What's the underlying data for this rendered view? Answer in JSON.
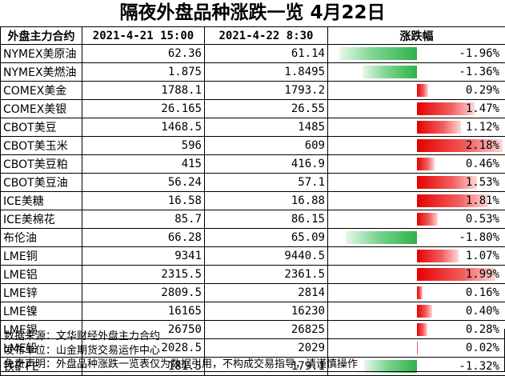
{
  "title": "隔夜外盘品种涨跌一览 4月22日",
  "headers": {
    "name": "外盘主力合约",
    "date1": "2021-4-21 15:00",
    "date2": "2021-4-22 8:30",
    "change": "涨跌幅"
  },
  "rows": [
    {
      "name": "NYMEX美原油",
      "v1": "62.36",
      "v2": "61.14",
      "pct": "-1.96%",
      "pct_value": -1.96
    },
    {
      "name": "NYMEX美燃油",
      "v1": "1.875",
      "v2": "1.8495",
      "pct": "-1.36%",
      "pct_value": -1.36
    },
    {
      "name": "COMEX美金",
      "v1": "1788.1",
      "v2": "1793.2",
      "pct": "0.29%",
      "pct_value": 0.29
    },
    {
      "name": "COMEX美银",
      "v1": "26.165",
      "v2": "26.55",
      "pct": "1.47%",
      "pct_value": 1.47
    },
    {
      "name": "CBOT美豆",
      "v1": "1468.5",
      "v2": "1485",
      "pct": "1.12%",
      "pct_value": 1.12
    },
    {
      "name": "CBOT美玉米",
      "v1": "596",
      "v2": "609",
      "pct": "2.18%",
      "pct_value": 2.18
    },
    {
      "name": "CBOT美豆粕",
      "v1": "415",
      "v2": "416.9",
      "pct": "0.46%",
      "pct_value": 0.46
    },
    {
      "name": "CBOT美豆油",
      "v1": "56.24",
      "v2": "57.1",
      "pct": "1.53%",
      "pct_value": 1.53
    },
    {
      "name": "ICE美糖",
      "v1": "16.58",
      "v2": "16.88",
      "pct": "1.81%",
      "pct_value": 1.81
    },
    {
      "name": "ICE美棉花",
      "v1": "85.7",
      "v2": "86.15",
      "pct": "0.53%",
      "pct_value": 0.53
    },
    {
      "name": "布伦油",
      "v1": "66.28",
      "v2": "65.09",
      "pct": "-1.80%",
      "pct_value": -1.8
    },
    {
      "name": "LME铜",
      "v1": "9341",
      "v2": "9440.5",
      "pct": "1.07%",
      "pct_value": 1.07
    },
    {
      "name": "LME铝",
      "v1": "2315.5",
      "v2": "2361.5",
      "pct": "1.99%",
      "pct_value": 1.99
    },
    {
      "name": "LME锌",
      "v1": "2809.5",
      "v2": "2814",
      "pct": "0.16%",
      "pct_value": 0.16
    },
    {
      "name": "LME镍",
      "v1": "16165",
      "v2": "16230",
      "pct": "0.40%",
      "pct_value": 0.4
    },
    {
      "name": "LME锡",
      "v1": "26750",
      "v2": "26825",
      "pct": "0.28%",
      "pct_value": 0.28
    },
    {
      "name": "LME铅",
      "v1": "2028.5",
      "v2": "2029",
      "pct": "0.02%",
      "pct_value": 0.02
    },
    {
      "name": "铁矿FE",
      "v1": "181.5",
      "v2": "179.1",
      "pct": "-1.32%",
      "pct_value": -1.32
    }
  ],
  "colors": {
    "up": "#e60000",
    "down": "#2eb24a"
  },
  "notes": [
    "数据来源：文华财经外盘主力合约",
    "发布单位：山金期货交易运作中心",
    "免责声明：外盘品种涨跌一览表仅为数据引用，不构成交易指导，请谨慎操作"
  ]
}
